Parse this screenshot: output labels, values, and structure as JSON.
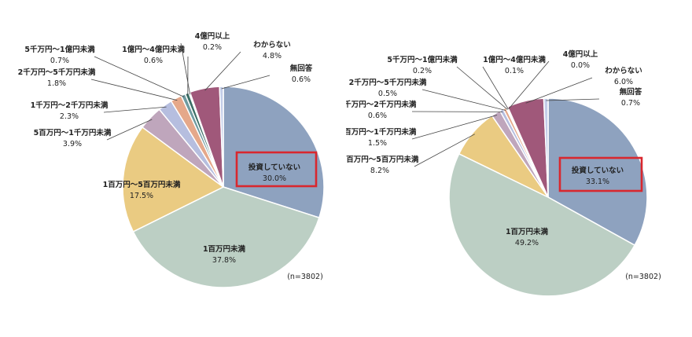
{
  "chart_data": [
    {
      "type": "pie",
      "n_label": "(n=3802)",
      "slices": [
        {
          "label": "投資していない",
          "value": 30.0,
          "value_label": "30.0%",
          "color": "#8ea2bf",
          "highlight": true
        },
        {
          "label": "1百万円未満",
          "value": 37.8,
          "value_label": "37.8%",
          "color": "#bccfc4"
        },
        {
          "label": "1百万円～5百万円未満",
          "value": 17.5,
          "value_label": "17.5%",
          "color": "#eacb82"
        },
        {
          "label": "5百万円～1千万円未満",
          "value": 3.9,
          "value_label": "3.9%",
          "color": "#bfa6bc"
        },
        {
          "label": "1千万円～2千万円未満",
          "value": 2.3,
          "value_label": "2.3%",
          "color": "#b6bedf"
        },
        {
          "label": "2千万円～5千万円未満",
          "value": 1.8,
          "value_label": "1.8%",
          "color": "#e5a88a"
        },
        {
          "label": "5千万円～1億円未満",
          "value": 0.7,
          "value_label": "0.7%",
          "color": "#6e9ba0"
        },
        {
          "label": "1億円～4億円未満",
          "value": 0.6,
          "value_label": "0.6%",
          "color": "#3b6f66"
        },
        {
          "label": "4億円以上",
          "value": 0.2,
          "value_label": "0.2%",
          "color": "#c8b8d2"
        },
        {
          "label": "わからない",
          "value": 4.8,
          "value_label": "4.8%",
          "color": "#a0587a"
        },
        {
          "label": "無回答",
          "value": 0.6,
          "value_label": "0.6%",
          "color": "#c3cde8"
        }
      ]
    },
    {
      "type": "pie",
      "n_label": "(n=3802)",
      "slices": [
        {
          "label": "投資していない",
          "value": 33.1,
          "value_label": "33.1%",
          "color": "#8ea2bf",
          "highlight": true
        },
        {
          "label": "1百万円未満",
          "value": 49.2,
          "value_label": "49.2%",
          "color": "#bccfc4"
        },
        {
          "label": "1百万円～5百万円未満",
          "value": 8.2,
          "value_label": "8.2%",
          "color": "#eacb82"
        },
        {
          "label": "5百万円～1千万円未満",
          "value": 1.5,
          "value_label": "1.5%",
          "color": "#bfa6bc"
        },
        {
          "label": "1千万円～2千万円未満",
          "value": 0.6,
          "value_label": "0.6%",
          "color": "#b6bedf"
        },
        {
          "label": "2千万円～5千万円未満",
          "value": 0.5,
          "value_label": "0.5%",
          "color": "#e5a88a"
        },
        {
          "label": "5千万円～1億円未満",
          "value": 0.2,
          "value_label": "0.2%",
          "color": "#6e9ba0"
        },
        {
          "label": "1億円～4億円未満",
          "value": 0.1,
          "value_label": "0.1%",
          "color": "#3b6f66"
        },
        {
          "label": "4億円以上",
          "value": 0.0,
          "value_label": "0.0%",
          "color": "#c8b8d2"
        },
        {
          "label": "わからない",
          "value": 6.0,
          "value_label": "6.0%",
          "color": "#a0587a"
        },
        {
          "label": "無回答",
          "value": 0.7,
          "value_label": "0.7%",
          "color": "#c3cde8"
        }
      ]
    }
  ]
}
